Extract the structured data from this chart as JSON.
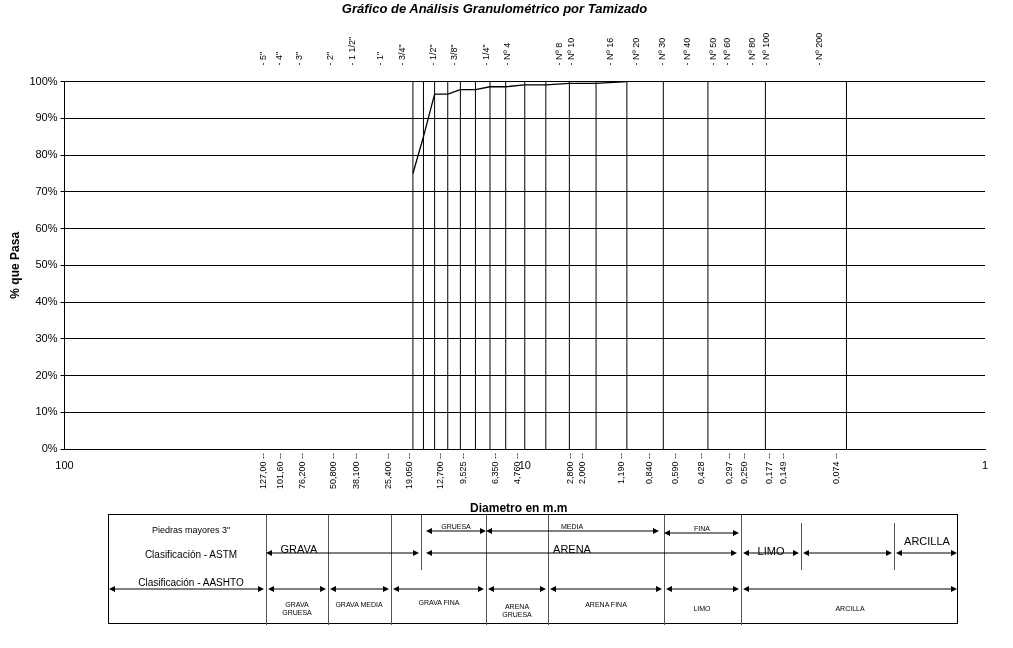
{
  "chart_data": {
    "type": "line",
    "title": "Gráfico de Análisis Granulométrico por Tamizado",
    "xlabel": "Diametro en m.m",
    "ylabel": "% que Pasa",
    "log": "x",
    "xlim": [
      100,
      1
    ],
    "xticks": [
      100,
      10,
      1
    ],
    "ylim": [
      0,
      100
    ],
    "yticks": [
      {
        "value": 0,
        "label": "0%"
      },
      {
        "value": 10,
        "label": "10%"
      },
      {
        "value": 20,
        "label": "20%"
      },
      {
        "value": 30,
        "label": "30%"
      },
      {
        "value": 40,
        "label": "40%"
      },
      {
        "value": 50,
        "label": "50%"
      },
      {
        "value": 60,
        "label": "60%"
      },
      {
        "value": 70,
        "label": "70%"
      },
      {
        "value": 80,
        "label": "80%"
      },
      {
        "value": 90,
        "label": "90%"
      },
      {
        "value": 100,
        "label": "100%"
      }
    ],
    "grid": "y",
    "marker": "none",
    "line_style": "solid",
    "series": [
      {
        "color": "#000000",
        "x": [
          17.5,
          16.6,
          15.7,
          14.7,
          13.8,
          12.8,
          11.9,
          11,
          10,
          9,
          8,
          7,
          6
        ],
        "values": [
          75,
          85,
          96.6,
          96.6,
          97.8,
          97.8,
          98.6,
          98.6,
          99.1,
          99.1,
          99.5,
          99.5,
          100
        ]
      }
    ],
    "ref_lines": [
      {
        "axis": "x",
        "value": 17.5,
        "color": "#000000"
      },
      {
        "axis": "x",
        "value": 16.6,
        "color": "#000000"
      },
      {
        "axis": "x",
        "value": 15.7,
        "color": "#000000"
      },
      {
        "axis": "x",
        "value": 14.7,
        "color": "#000000"
      },
      {
        "axis": "x",
        "value": 13.8,
        "color": "#000000"
      },
      {
        "axis": "x",
        "value": 12.8,
        "color": "#000000"
      },
      {
        "axis": "x",
        "value": 11.9,
        "color": "#000000"
      },
      {
        "axis": "x",
        "value": 11,
        "color": "#000000"
      },
      {
        "axis": "x",
        "value": 10,
        "color": "#000000"
      },
      {
        "axis": "x",
        "value": 9,
        "color": "#000000"
      },
      {
        "axis": "x",
        "value": 8,
        "color": "#000000"
      },
      {
        "axis": "x",
        "value": 7,
        "color": "#000000"
      },
      {
        "axis": "x",
        "value": 6,
        "color": "#000000"
      },
      {
        "axis": "x",
        "value": 5,
        "color": "#000000"
      },
      {
        "axis": "x",
        "value": 4,
        "color": "#000000"
      },
      {
        "axis": "x",
        "value": 3,
        "color": "#000000"
      },
      {
        "axis": "x",
        "value": 2,
        "color": "#000000"
      }
    ],
    "annotations": [
      "Piedras mayores 3\"",
      "Clasificación - ASTM",
      "Clasificación - AASHTO",
      "GRAVA",
      "GRUESA",
      "MEDIA",
      "FINA",
      "ARENA",
      "LIMO",
      "ARCILLA",
      "GRAVA GRUESA",
      "GRAVA MEDIA",
      "GRAVA FINA",
      "ARENA GRUESA",
      "ARENA FINA",
      "LIMO",
      "ARCILLA",
      "127,00 --",
      "101,60 --",
      "76,200 --",
      "50,800 --",
      "38,100 --",
      "25,400 --",
      "19,050 --",
      "12,700 --",
      "9,525 --",
      "6,350 --",
      "4,760 --",
      "2,800 --",
      "2,000 --",
      "1,190 --",
      "0,840 --",
      "0,590 --",
      "0,428 --",
      "0,297 --",
      "0,250 --",
      "0,177 --",
      "0,149 --",
      "0,074 --",
      "- 5\"",
      "- 4\"",
      "- 3\"",
      "- 2\"",
      "- 1 1/2\"",
      "- 1\"",
      "- 3/4\"",
      "- 1/2\"",
      "- 3/8\"",
      "- 1/4\"",
      "- Nº 4",
      "- Nº 8",
      "- Nº 10",
      "- Nº 16",
      "- Nº 20",
      "- Nº 30",
      "- Nº 40",
      "- Nº 50",
      "- Nº 60",
      "- Nº 80",
      "- Nº 100",
      "- Nº 200"
    ]
  }
}
